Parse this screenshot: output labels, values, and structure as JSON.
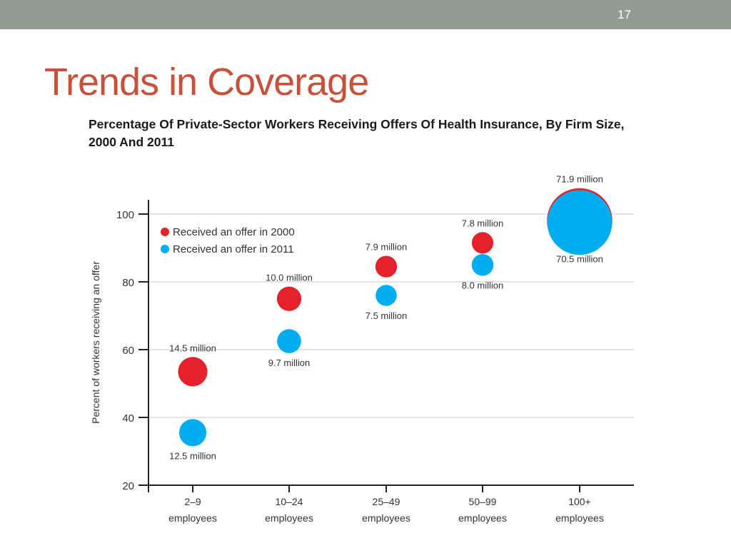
{
  "slide": {
    "number": "17",
    "title": "Trends in Coverage"
  },
  "colors": {
    "topbar": "#939c94",
    "title": "#c8513b",
    "series_2000": "#e3222b",
    "series_2011": "#00aeef",
    "grid": "#c8c8c8"
  },
  "chart_data": {
    "type": "bubble",
    "title": "Percentage Of Private-Sector Workers Receiving Offers Of Health Insurance, By Firm Size, 2000 And 2011",
    "xlabel": "",
    "ylabel": "Percent of workers receiving an offer",
    "ylim": [
      20,
      100
    ],
    "yticks": [
      "20",
      "40",
      "60",
      "80",
      "100"
    ],
    "grid": true,
    "legend_position": "top-left",
    "categories": [
      {
        "line1": "2–9",
        "line2": "employees"
      },
      {
        "line1": "10–24",
        "line2": "employees"
      },
      {
        "line1": "25–49",
        "line2": "employees"
      },
      {
        "line1": "50–99",
        "line2": "employees"
      },
      {
        "line1": "100+",
        "line2": "employees"
      }
    ],
    "series": [
      {
        "name": "Received an offer in 2000",
        "color": "#e3222b",
        "values": [
          53.5,
          75,
          84.5,
          91.5,
          98
        ],
        "size_millions": [
          14.5,
          10.0,
          7.9,
          7.8,
          71.9
        ],
        "labels": [
          "14.5 million",
          "10.0 million",
          "7.9 million",
          "7.8 million",
          "71.9 million"
        ]
      },
      {
        "name": "Received an offer in 2011",
        "color": "#00aeef",
        "values": [
          35.5,
          62.5,
          76,
          85,
          97.5
        ],
        "size_millions": [
          12.5,
          9.7,
          7.5,
          8.0,
          70.5
        ],
        "labels": [
          "12.5 million",
          "9.7 million",
          "7.5 million",
          "8.0 million",
          "70.5 million"
        ]
      }
    ]
  }
}
